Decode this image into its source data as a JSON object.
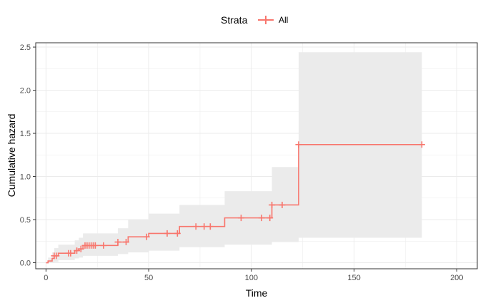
{
  "chart_data": {
    "type": "line",
    "xlabel": "Time",
    "ylabel": "Cumulative hazard",
    "xlim": [
      -5,
      210
    ],
    "ylim": [
      -0.07,
      2.55
    ],
    "x_ticks": [
      0,
      50,
      100,
      150,
      200
    ],
    "y_ticks": [
      0.0,
      0.5,
      1.0,
      1.5,
      2.0,
      2.5
    ],
    "x_tick_labels": [
      "0",
      "50",
      "100",
      "150",
      "200"
    ],
    "y_tick_labels": [
      "0.0",
      "0.5",
      "1.0",
      "1.5",
      "2.0",
      "2.5"
    ],
    "grid": true,
    "legend": {
      "title": "Strata",
      "position": "top",
      "entries": [
        "All"
      ]
    },
    "series": [
      {
        "name": "All",
        "color": "#f8766d",
        "band_color": "#ebebeb",
        "steps": [
          {
            "x": 0,
            "y": 0.0,
            "lower": 0.0,
            "upper": 0.0
          },
          {
            "x": 1,
            "y": 0.02,
            "lower": 0.0,
            "upper": 0.06
          },
          {
            "x": 3,
            "y": 0.05,
            "lower": 0.0,
            "upper": 0.12
          },
          {
            "x": 4,
            "y": 0.08,
            "lower": 0.01,
            "upper": 0.17
          },
          {
            "x": 6,
            "y": 0.11,
            "lower": 0.03,
            "upper": 0.21
          },
          {
            "x": 14,
            "y": 0.14,
            "lower": 0.05,
            "upper": 0.26
          },
          {
            "x": 16,
            "y": 0.16,
            "lower": 0.06,
            "upper": 0.29
          },
          {
            "x": 18,
            "y": 0.2,
            "lower": 0.08,
            "upper": 0.34
          },
          {
            "x": 35,
            "y": 0.24,
            "lower": 0.1,
            "upper": 0.4
          },
          {
            "x": 40,
            "y": 0.3,
            "lower": 0.12,
            "upper": 0.5
          },
          {
            "x": 50,
            "y": 0.34,
            "lower": 0.14,
            "upper": 0.57
          },
          {
            "x": 65,
            "y": 0.42,
            "lower": 0.18,
            "upper": 0.67
          },
          {
            "x": 87,
            "y": 0.52,
            "lower": 0.21,
            "upper": 0.83
          },
          {
            "x": 110,
            "y": 0.67,
            "lower": 0.24,
            "upper": 1.11
          },
          {
            "x": 123,
            "y": 1.37,
            "lower": 0.29,
            "upper": 2.44
          },
          {
            "x": 183,
            "y": 1.37,
            "lower": 0.29,
            "upper": 2.44
          }
        ],
        "censored_x": [
          4,
          5,
          11,
          12,
          15,
          17,
          19,
          20,
          21,
          22,
          23,
          24,
          28,
          35,
          39,
          49,
          59,
          64,
          73,
          77,
          80,
          95,
          105,
          109,
          110,
          115,
          123,
          183
        ]
      }
    ]
  }
}
